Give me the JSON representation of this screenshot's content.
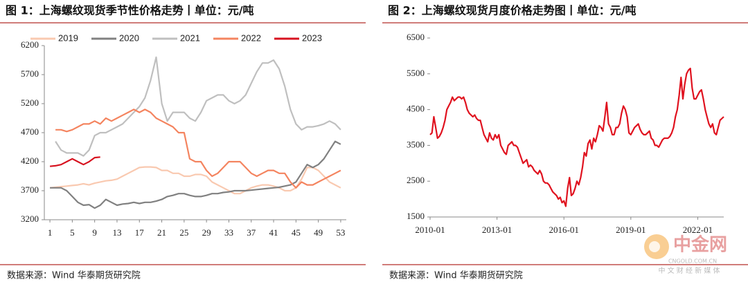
{
  "chart_data": [
    {
      "type": "line",
      "title": "图 1：上海螺纹现货季节性价格走势丨单位：元/吨",
      "source": "数据来源：Wind 华泰期货研究院",
      "x": [
        1,
        2,
        3,
        4,
        5,
        6,
        7,
        8,
        9,
        10,
        11,
        12,
        13,
        14,
        15,
        16,
        17,
        18,
        19,
        20,
        21,
        22,
        23,
        24,
        25,
        26,
        27,
        28,
        29,
        30,
        31,
        32,
        33,
        34,
        35,
        36,
        37,
        38,
        39,
        40,
        41,
        42,
        43,
        44,
        45,
        46,
        47,
        48,
        49,
        50,
        51,
        52,
        53
      ],
      "xlim": [
        0,
        54
      ],
      "xticks": [
        1,
        5,
        9,
        13,
        17,
        21,
        25,
        29,
        33,
        37,
        41,
        45,
        49,
        53
      ],
      "ylim": [
        3200,
        6200
      ],
      "yticks": [
        3200,
        3700,
        4200,
        4700,
        5200,
        5700,
        6200
      ],
      "legend": "top",
      "series": [
        {
          "name": "2019",
          "color": "#f9c9b0",
          "values": [
            3750,
            3760,
            3770,
            3780,
            3790,
            3800,
            3820,
            3800,
            3830,
            3850,
            3870,
            3880,
            3900,
            3950,
            4000,
            4050,
            4100,
            4110,
            4110,
            4100,
            4050,
            4050,
            4000,
            4000,
            3950,
            3950,
            3980,
            3980,
            3950,
            3850,
            3800,
            3750,
            3700,
            3650,
            3650,
            3700,
            3750,
            3780,
            3800,
            3800,
            3780,
            3750,
            3700,
            3700,
            3750,
            3900,
            4100,
            4100,
            4050,
            3950,
            3850,
            3800,
            3750
          ]
        },
        {
          "name": "2020",
          "color": "#808080",
          "values": [
            3750,
            3750,
            3750,
            3700,
            3600,
            3500,
            3450,
            3460,
            3400,
            3450,
            3550,
            3500,
            3450,
            3470,
            3480,
            3500,
            3480,
            3500,
            3500,
            3520,
            3550,
            3600,
            3620,
            3650,
            3650,
            3620,
            3600,
            3600,
            3620,
            3650,
            3650,
            3670,
            3680,
            3700,
            3700,
            3700,
            3710,
            3720,
            3730,
            3740,
            3750,
            3760,
            3780,
            3800,
            3850,
            4000,
            4150,
            4100,
            4150,
            4250,
            4400,
            4550,
            4500
          ]
        },
        {
          "name": "2021",
          "color": "#bfbfbf",
          "values": [
            null,
            4550,
            4400,
            4350,
            4350,
            4350,
            4300,
            4400,
            4650,
            4700,
            4700,
            4750,
            4800,
            4850,
            4950,
            5050,
            5150,
            5300,
            5600,
            6000,
            5200,
            4900,
            5050,
            5050,
            5050,
            4950,
            4900,
            5050,
            5250,
            5300,
            5350,
            5350,
            5250,
            5200,
            5250,
            5350,
            5550,
            5750,
            5900,
            5900,
            5950,
            5800,
            5500,
            5100,
            4850,
            4750,
            4800,
            4800,
            4820,
            4850,
            4900,
            4850,
            4750
          ]
        },
        {
          "name": "2022",
          "color": "#f4845f",
          "values": [
            null,
            4750,
            4750,
            4720,
            4750,
            4800,
            4850,
            4850,
            4900,
            4850,
            4950,
            4900,
            4950,
            5000,
            5050,
            5100,
            5050,
            5100,
            5050,
            4950,
            4900,
            4850,
            4800,
            4700,
            4700,
            4250,
            4200,
            4200,
            4050,
            3950,
            4000,
            4100,
            4200,
            4200,
            4200,
            4100,
            4000,
            3950,
            4000,
            4050,
            4050,
            4000,
            4000,
            3850,
            3750,
            3850,
            3800,
            3800,
            3850,
            3900,
            3950,
            4000,
            4050
          ]
        },
        {
          "name": "2023",
          "color": "#d7121f",
          "values": [
            4120,
            4130,
            4150,
            4200,
            4250,
            4200,
            4150,
            4200,
            4270,
            4280,
            null,
            null,
            null,
            null,
            null,
            null,
            null,
            null,
            null,
            null,
            null,
            null,
            null,
            null,
            null,
            null,
            null,
            null,
            null,
            null,
            null,
            null,
            null,
            null,
            null,
            null,
            null,
            null,
            null,
            null,
            null,
            null,
            null,
            null,
            null,
            null,
            null,
            null,
            null,
            null,
            null,
            null,
            null
          ]
        }
      ]
    },
    {
      "type": "line",
      "title": "图 2：上海螺纹现货月度价格走势图丨单位：元/吨",
      "source": "数据来源：Wind 华泰期货研究院",
      "x": [
        "2010-01",
        "2010-02",
        "2010-03",
        "2010-04",
        "2010-05",
        "2010-06",
        "2010-07",
        "2010-08",
        "2010-09",
        "2010-10",
        "2010-11",
        "2010-12",
        "2011-01",
        "2011-02",
        "2011-03",
        "2011-04",
        "2011-05",
        "2011-06",
        "2011-07",
        "2011-08",
        "2011-09",
        "2011-10",
        "2011-11",
        "2011-12",
        "2012-01",
        "2012-02",
        "2012-03",
        "2012-04",
        "2012-05",
        "2012-06",
        "2012-07",
        "2012-08",
        "2012-09",
        "2012-10",
        "2012-11",
        "2012-12",
        "2013-01",
        "2013-02",
        "2013-03",
        "2013-04",
        "2013-05",
        "2013-06",
        "2013-07",
        "2013-08",
        "2013-09",
        "2013-10",
        "2013-11",
        "2013-12",
        "2014-01",
        "2014-02",
        "2014-03",
        "2014-04",
        "2014-05",
        "2014-06",
        "2014-07",
        "2014-08",
        "2014-09",
        "2014-10",
        "2014-11",
        "2014-12",
        "2015-01",
        "2015-02",
        "2015-03",
        "2015-04",
        "2015-05",
        "2015-06",
        "2015-07",
        "2015-08",
        "2015-09",
        "2015-10",
        "2015-11",
        "2015-12",
        "2016-01",
        "2016-02",
        "2016-03",
        "2016-04",
        "2016-05",
        "2016-06",
        "2016-07",
        "2016-08",
        "2016-09",
        "2016-10",
        "2016-11",
        "2016-12",
        "2017-01",
        "2017-02",
        "2017-03",
        "2017-04",
        "2017-05",
        "2017-06",
        "2017-07",
        "2017-08",
        "2017-09",
        "2017-10",
        "2017-11",
        "2017-12",
        "2018-01",
        "2018-02",
        "2018-03",
        "2018-04",
        "2018-05",
        "2018-06",
        "2018-07",
        "2018-08",
        "2018-09",
        "2018-10",
        "2018-11",
        "2018-12",
        "2019-01",
        "2019-02",
        "2019-03",
        "2019-04",
        "2019-05",
        "2019-06",
        "2019-07",
        "2019-08",
        "2019-09",
        "2019-10",
        "2019-11",
        "2019-12",
        "2020-01",
        "2020-02",
        "2020-03",
        "2020-04",
        "2020-05",
        "2020-06",
        "2020-07",
        "2020-08",
        "2020-09",
        "2020-10",
        "2020-11",
        "2020-12",
        "2021-01",
        "2021-02",
        "2021-03",
        "2021-04",
        "2021-05",
        "2021-06",
        "2021-07",
        "2021-08",
        "2021-09",
        "2021-10",
        "2021-11",
        "2021-12",
        "2022-01",
        "2022-02",
        "2022-03",
        "2022-04",
        "2022-05",
        "2022-06",
        "2022-07",
        "2022-08",
        "2022-09",
        "2022-10",
        "2022-11",
        "2022-12",
        "2023-01",
        "2023-02",
        "2023-03"
      ],
      "xticks": [
        "2010-01",
        "2013-01",
        "2016-01",
        "2019-01",
        "2022-01"
      ],
      "ylim": [
        1500,
        6500
      ],
      "yticks": [
        1500,
        2500,
        3500,
        4500,
        5500,
        6500
      ],
      "series": [
        {
          "name": null,
          "color": "#e0121f",
          "values": [
            3800,
            3850,
            4300,
            4000,
            3700,
            3750,
            3850,
            4000,
            4200,
            4500,
            4600,
            4700,
            4850,
            4750,
            4800,
            4850,
            4850,
            4800,
            4850,
            4700,
            4500,
            4400,
            4350,
            4300,
            4350,
            4250,
            4200,
            4200,
            4000,
            3800,
            3700,
            3600,
            3850,
            3700,
            3650,
            3800,
            3700,
            3800,
            3500,
            3400,
            3300,
            3250,
            3500,
            3550,
            3600,
            3500,
            3500,
            3450,
            3300,
            3150,
            3000,
            3050,
            3100,
            2900,
            2950,
            2900,
            2800,
            2750,
            2700,
            2800,
            2700,
            2500,
            2450,
            2450,
            2400,
            2300,
            2200,
            2150,
            2100,
            2000,
            2050,
            1900,
            1950,
            1800,
            2300,
            2600,
            2100,
            2150,
            2300,
            2500,
            2400,
            2600,
            2900,
            3300,
            3200,
            3550,
            3650,
            3400,
            3700,
            3600,
            3800,
            4050,
            4000,
            3900,
            4300,
            4700,
            4100,
            4000,
            3800,
            3800,
            4000,
            4000,
            4100,
            4400,
            4600,
            4500,
            4300,
            3850,
            3800,
            3900,
            4000,
            4050,
            4100,
            3950,
            3850,
            3800,
            3800,
            3850,
            3900,
            3700,
            3650,
            3500,
            3500,
            3450,
            3550,
            3650,
            3700,
            3700,
            3700,
            3750,
            3850,
            4000,
            4300,
            4500,
            4900,
            5400,
            4800,
            5200,
            5500,
            5600,
            5650,
            5100,
            4800,
            4800,
            4900,
            5000,
            5050,
            4800,
            4500,
            4300,
            4100,
            4000,
            4100,
            3850,
            3800,
            4000,
            4200,
            4250,
            4300
          ]
        }
      ]
    }
  ],
  "watermark": {
    "brand": "中金网",
    "domain": "CNGOLD.COM.CN",
    "tagline": "中 文 财 经 新 媒 体"
  }
}
